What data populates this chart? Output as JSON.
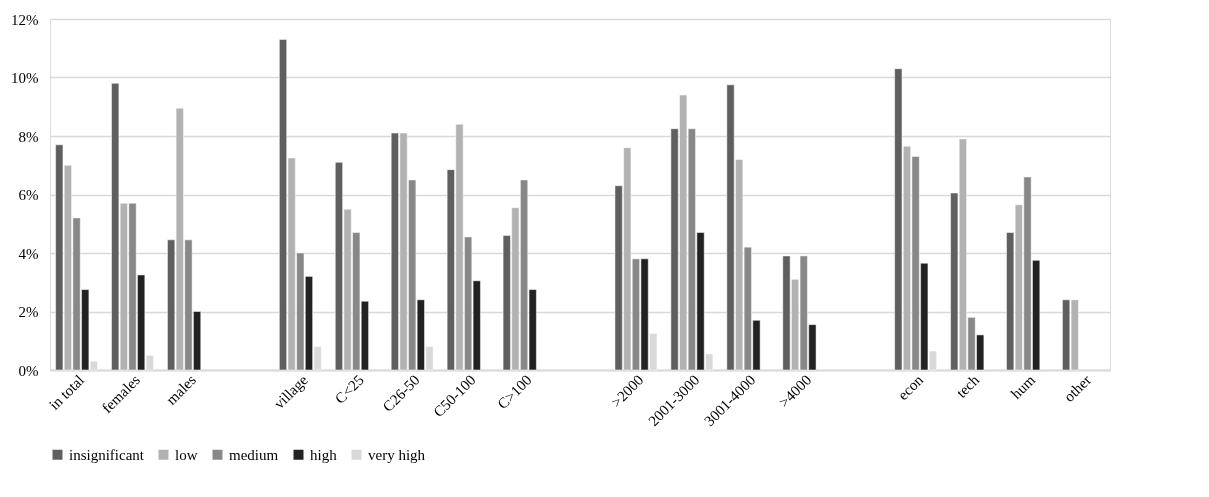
{
  "chart_data": {
    "type": "bar",
    "categories": [
      "in total",
      "females",
      "males",
      null,
      "village",
      "C<25",
      "C26-50",
      "C50-100",
      "C>100",
      null,
      ">2000",
      "2001-3000",
      "3001-4000",
      ">4000",
      null,
      "econ",
      "tech",
      "hum",
      "other"
    ],
    "series": [
      {
        "name": "insignificant",
        "color": "#5f5f5f",
        "values": [
          7.7,
          9.8,
          4.45,
          null,
          11.3,
          7.1,
          8.1,
          6.85,
          4.6,
          null,
          6.3,
          8.25,
          9.75,
          3.9,
          null,
          10.3,
          6.05,
          4.7,
          2.4
        ]
      },
      {
        "name": "low",
        "color": "#b2b2b2",
        "values": [
          7.0,
          5.7,
          8.95,
          null,
          7.25,
          5.5,
          8.1,
          8.4,
          5.55,
          null,
          7.6,
          9.4,
          7.2,
          3.1,
          null,
          7.65,
          7.9,
          5.65,
          2.4
        ]
      },
      {
        "name": "medium",
        "color": "#888888",
        "values": [
          5.2,
          5.7,
          4.45,
          null,
          4.0,
          4.7,
          6.5,
          4.55,
          6.5,
          null,
          3.8,
          8.25,
          4.2,
          3.9,
          null,
          7.3,
          1.8,
          6.6,
          null
        ]
      },
      {
        "name": "high",
        "color": "#222222",
        "values": [
          2.75,
          3.25,
          2.0,
          null,
          3.2,
          2.35,
          2.4,
          3.05,
          2.75,
          null,
          3.8,
          4.7,
          1.7,
          1.55,
          null,
          3.65,
          1.2,
          3.75,
          null
        ]
      },
      {
        "name": "very high",
        "color": "#d9d9d9",
        "values": [
          0.3,
          0.5,
          null,
          null,
          0.8,
          null,
          0.8,
          null,
          null,
          null,
          1.25,
          0.55,
          null,
          null,
          null,
          0.65,
          null,
          null,
          null
        ]
      }
    ],
    "ylim": [
      0,
      12
    ],
    "yticks": [
      {
        "value": 0,
        "label": "0%"
      },
      {
        "value": 2,
        "label": "2%"
      },
      {
        "value": 4,
        "label": "4%"
      },
      {
        "value": 6,
        "label": "6%"
      },
      {
        "value": 8,
        "label": "8%"
      },
      {
        "value": 10,
        "label": "10%"
      },
      {
        "value": 12,
        "label": "12%"
      }
    ],
    "grid": "y",
    "legend": "bottom"
  }
}
